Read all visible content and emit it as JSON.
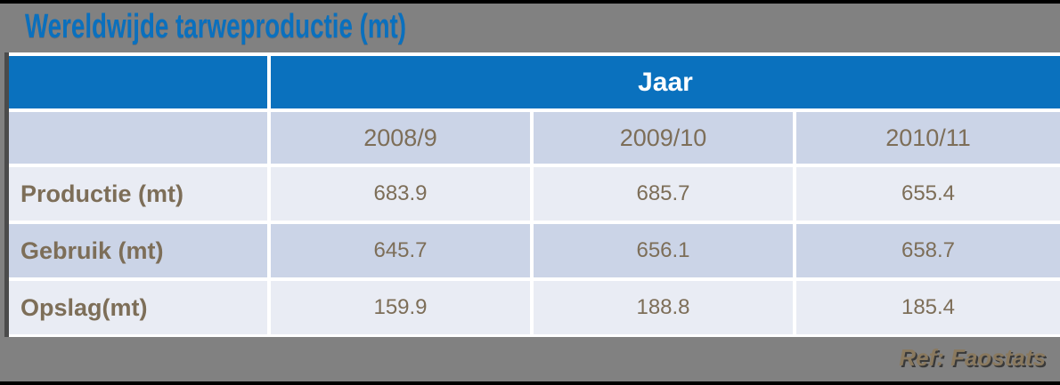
{
  "title": "Wereldwijde tarweproductie (mt)",
  "table": {
    "header_group": "Jaar",
    "columns": [
      "2008/9",
      "2009/10",
      "2010/11"
    ],
    "rows": [
      {
        "label": "Productie (mt)",
        "values": [
          "683.9",
          "685.7",
          "655.4"
        ]
      },
      {
        "label": "Gebruik (mt)",
        "values": [
          "645.7",
          "656.1",
          "658.7"
        ]
      },
      {
        "label": "Opslag(mt)",
        "values": [
          "159.9",
          "188.8",
          "185.4"
        ]
      }
    ]
  },
  "footer": {
    "ref": "Ref: Faostats"
  },
  "colors": {
    "background": "#818181",
    "edge_bars": "#000000",
    "accent_blue": "#0a71be",
    "band_dark": "#cbd4e7",
    "band_light": "#e9ecf4",
    "text_brown": "#7d6e58",
    "table_left_border": "#4b4b4b",
    "separator": "#ffffff"
  },
  "chart_data": {
    "type": "table",
    "title": "Wereldwijde tarweproductie (mt)",
    "column_group_header": "Jaar",
    "categories": [
      "2008/9",
      "2009/10",
      "2010/11"
    ],
    "series": [
      {
        "name": "Productie (mt)",
        "values": [
          683.9,
          685.7,
          655.4
        ]
      },
      {
        "name": "Gebruik (mt)",
        "values": [
          645.7,
          656.1,
          658.7
        ]
      },
      {
        "name": "Opslag(mt)",
        "values": [
          159.9,
          188.8,
          185.4
        ]
      }
    ],
    "source": "Ref: Faostats"
  }
}
